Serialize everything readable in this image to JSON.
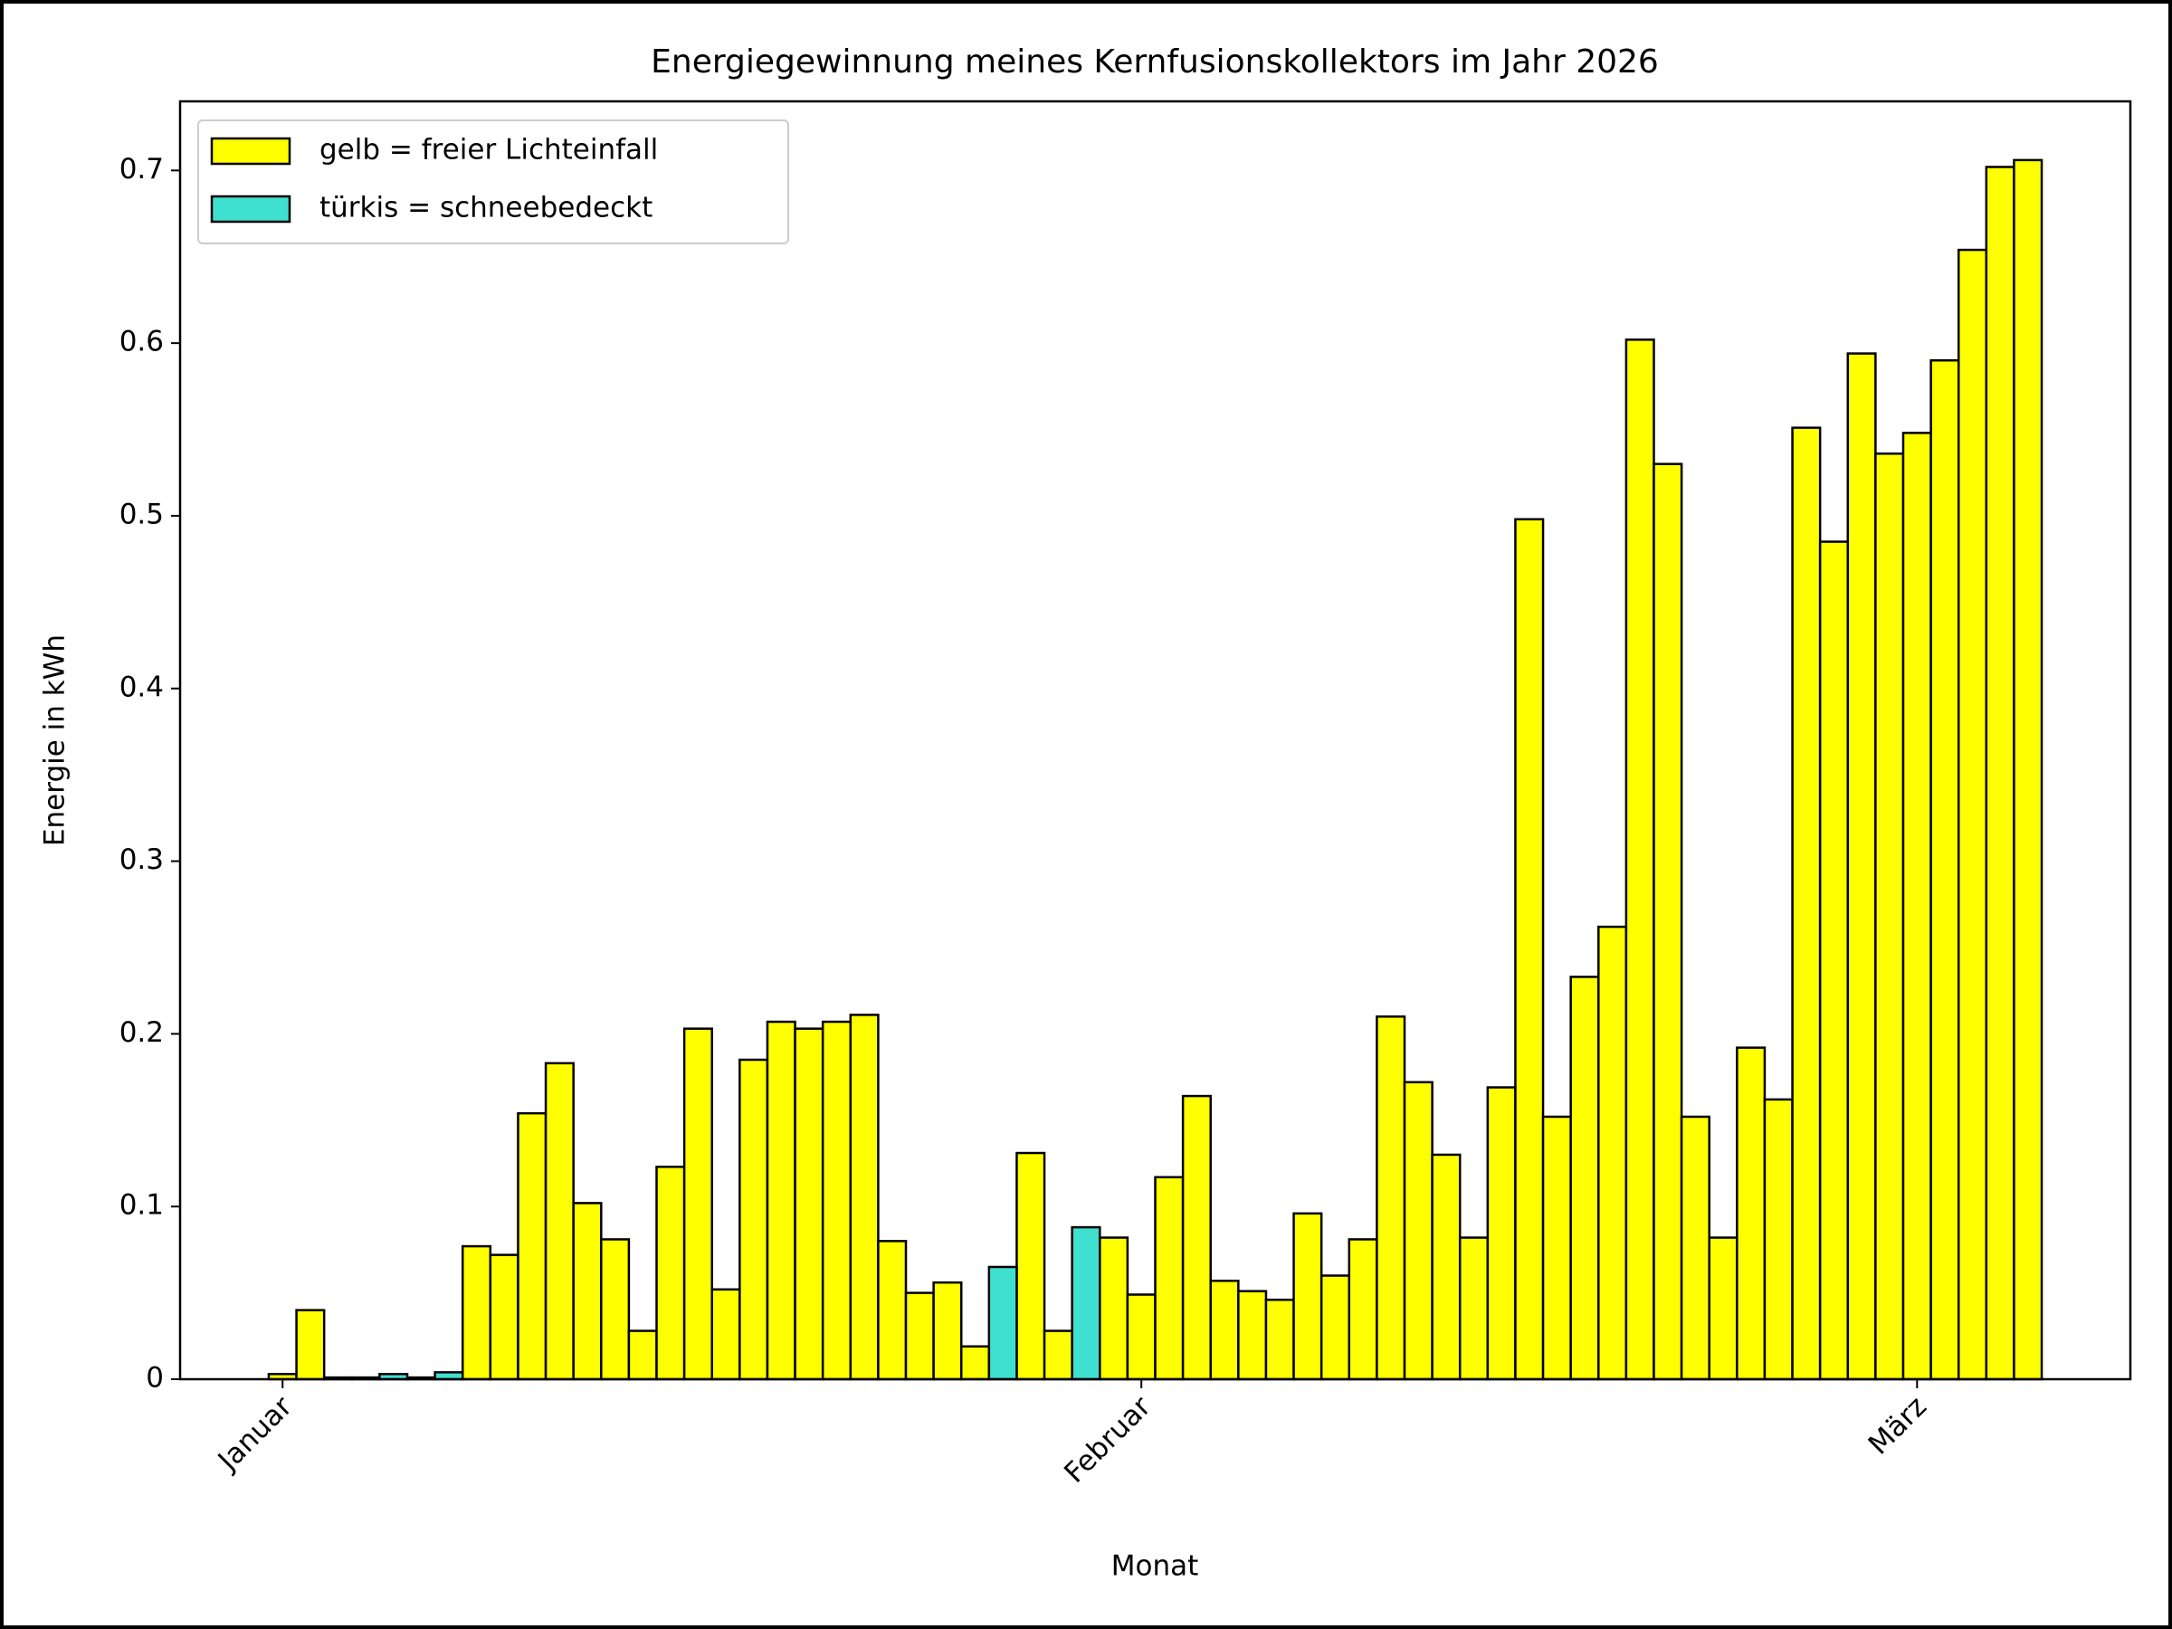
{
  "chart_data": {
    "type": "bar",
    "title": "Energiegewinnung meines Kernfusionskollektors im Jahr 2026",
    "x_label": "Monat",
    "y_label": "Energie in kWh",
    "x": [
      0,
      1,
      2,
      3,
      4,
      5,
      6,
      7,
      8,
      9,
      10,
      11,
      12,
      13,
      14,
      15,
      16,
      17,
      18,
      19,
      20,
      21,
      22,
      23,
      24,
      25,
      26,
      27,
      28,
      29,
      30,
      31,
      32,
      33,
      34,
      35,
      36,
      37,
      38,
      39,
      40,
      41,
      42,
      43,
      44,
      45,
      46,
      47,
      48,
      49,
      50,
      51,
      52,
      53,
      54,
      55,
      56,
      57,
      58,
      59,
      60,
      61,
      62,
      63
    ],
    "series": [
      {
        "name": "gelb = freier Lichteinfall",
        "color": "#ffff00",
        "values": [
          0.003,
          0.04,
          0.001,
          0.001,
          null,
          0.001,
          null,
          0.077,
          0.072,
          0.154,
          0.183,
          0.102,
          0.081,
          0.028,
          0.123,
          0.203,
          0.052,
          0.185,
          0.207,
          0.203,
          0.207,
          0.211,
          0.08,
          0.05,
          0.056,
          0.019,
          null,
          0.131,
          0.028,
          null,
          0.082,
          0.049,
          0.117,
          0.164,
          0.057,
          0.051,
          0.046,
          0.096,
          0.06,
          0.081,
          0.21,
          0.172,
          0.13,
          0.082,
          0.169,
          0.498,
          0.152,
          0.233,
          0.262,
          0.602,
          0.53,
          0.152,
          0.082,
          0.192,
          0.162,
          0.551,
          0.485,
          0.594,
          0.536,
          0.548,
          0.59,
          0.654,
          0.702,
          0.706
        ]
      },
      {
        "name": "türkis = schneebedeckt",
        "color": "#40e0d0",
        "values": [
          null,
          null,
          null,
          null,
          0.003,
          null,
          0.004,
          null,
          null,
          null,
          null,
          null,
          null,
          null,
          null,
          null,
          null,
          null,
          null,
          null,
          null,
          null,
          null,
          null,
          null,
          null,
          0.065,
          null,
          null,
          0.088,
          null,
          null,
          null,
          null,
          null,
          null,
          null,
          null,
          null,
          null,
          null,
          null,
          null,
          null,
          null,
          null,
          null,
          null,
          null,
          null,
          null,
          null,
          null,
          null,
          null,
          null,
          null,
          null,
          null,
          null,
          null,
          null,
          null,
          null
        ]
      }
    ],
    "xlim": [
      -3.7,
      66.7
    ],
    "xticks": [
      {
        "value": 0,
        "label": "Januar"
      },
      {
        "value": 31,
        "label": "Februar"
      },
      {
        "value": 59,
        "label": "März"
      }
    ],
    "ylim": [
      0,
      0.74
    ],
    "yticks": [
      0,
      0.1,
      0.2,
      0.3,
      0.4,
      0.5,
      0.6,
      0.7
    ],
    "legend": "upper left"
  }
}
